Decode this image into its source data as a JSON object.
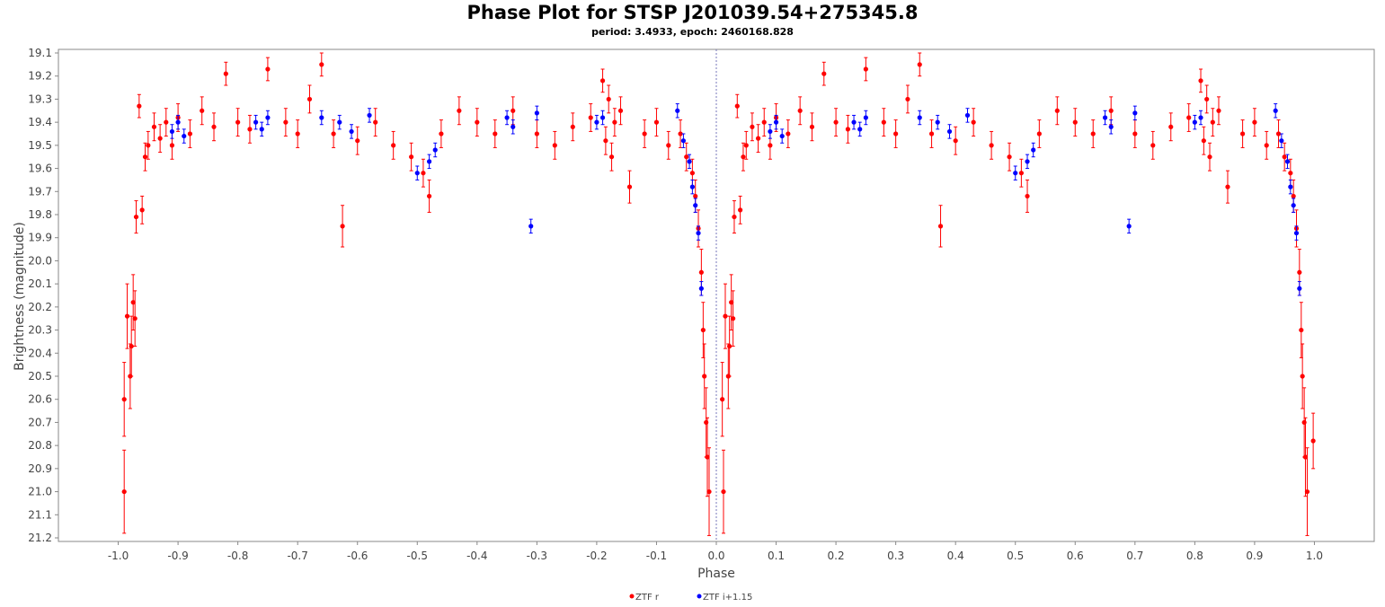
{
  "chart_data": {
    "type": "scatter",
    "title": "Phase Plot for STSP J201039.54+275345.8",
    "subtitle": "period: 3.4933, epoch: 2460168.828",
    "xlabel": "Phase",
    "ylabel": "Brightness (magnitude)",
    "xlim": [
      -1.1,
      1.1
    ],
    "ylim": [
      21.2,
      19.1
    ],
    "y_inverted": true,
    "xticks": [
      "-1.0",
      "-0.9",
      "-0.8",
      "-0.7",
      "-0.6",
      "-0.5",
      "-0.4",
      "-0.3",
      "-0.2",
      "-0.1",
      "0.0",
      "0.1",
      "0.2",
      "0.3",
      "0.4",
      "0.5",
      "0.6",
      "0.7",
      "0.8",
      "0.9",
      "1.0"
    ],
    "yticks": [
      "19.1",
      "19.2",
      "19.3",
      "19.4",
      "19.5",
      "19.6",
      "19.7",
      "19.8",
      "19.9",
      "20.0",
      "20.1",
      "20.2",
      "20.3",
      "20.4",
      "20.5",
      "20.6",
      "20.7",
      "20.8",
      "20.9",
      "21.0",
      "21.1",
      "21.2"
    ],
    "grid": false,
    "reference_line_x": 0.0,
    "legend_position": "bottom-center",
    "series": [
      {
        "name": "ZTF r",
        "color": "#ff0000",
        "points": [
          [
            -0.99,
            20.6,
            0.16
          ],
          [
            -0.99,
            21.0,
            0.18
          ],
          [
            -0.985,
            20.24,
            0.14
          ],
          [
            -0.98,
            20.5,
            0.14
          ],
          [
            -0.978,
            20.37,
            0.13
          ],
          [
            -0.975,
            20.18,
            0.12
          ],
          [
            -0.972,
            20.25,
            0.12
          ],
          [
            -0.97,
            19.81,
            0.07
          ],
          [
            -0.965,
            19.33,
            0.05
          ],
          [
            -0.96,
            19.78,
            0.06
          ],
          [
            -0.955,
            19.55,
            0.06
          ],
          [
            -0.95,
            19.5,
            0.06
          ],
          [
            -0.94,
            19.42,
            0.06
          ],
          [
            -0.93,
            19.47,
            0.06
          ],
          [
            -0.92,
            19.4,
            0.06
          ],
          [
            -0.91,
            19.5,
            0.06
          ],
          [
            -0.9,
            19.38,
            0.06
          ],
          [
            -0.88,
            19.45,
            0.06
          ],
          [
            -0.86,
            19.35,
            0.06
          ],
          [
            -0.84,
            19.42,
            0.06
          ],
          [
            -0.82,
            19.19,
            0.05
          ],
          [
            -0.8,
            19.4,
            0.06
          ],
          [
            -0.78,
            19.43,
            0.06
          ],
          [
            -0.75,
            19.17,
            0.05
          ],
          [
            -0.72,
            19.4,
            0.06
          ],
          [
            -0.7,
            19.45,
            0.06
          ],
          [
            -0.68,
            19.3,
            0.06
          ],
          [
            -0.66,
            19.15,
            0.05
          ],
          [
            -0.64,
            19.45,
            0.06
          ],
          [
            -0.625,
            19.85,
            0.09
          ],
          [
            -0.6,
            19.48,
            0.06
          ],
          [
            -0.57,
            19.4,
            0.06
          ],
          [
            -0.54,
            19.5,
            0.06
          ],
          [
            -0.51,
            19.55,
            0.06
          ],
          [
            -0.49,
            19.62,
            0.06
          ],
          [
            -0.48,
            19.72,
            0.07
          ],
          [
            -0.46,
            19.45,
            0.06
          ],
          [
            -0.43,
            19.35,
            0.06
          ],
          [
            -0.4,
            19.4,
            0.06
          ],
          [
            -0.37,
            19.45,
            0.06
          ],
          [
            -0.34,
            19.35,
            0.06
          ],
          [
            -0.3,
            19.45,
            0.06
          ],
          [
            -0.27,
            19.5,
            0.06
          ],
          [
            -0.24,
            19.42,
            0.06
          ],
          [
            -0.21,
            19.38,
            0.06
          ],
          [
            -0.19,
            19.22,
            0.05
          ],
          [
            -0.185,
            19.48,
            0.06
          ],
          [
            -0.18,
            19.3,
            0.06
          ],
          [
            -0.175,
            19.55,
            0.06
          ],
          [
            -0.17,
            19.4,
            0.06
          ],
          [
            -0.16,
            19.35,
            0.06
          ],
          [
            -0.145,
            19.68,
            0.07
          ],
          [
            -0.12,
            19.45,
            0.06
          ],
          [
            -0.1,
            19.4,
            0.06
          ],
          [
            -0.08,
            19.5,
            0.06
          ],
          [
            -0.06,
            19.45,
            0.06
          ],
          [
            -0.05,
            19.55,
            0.06
          ],
          [
            -0.04,
            19.62,
            0.06
          ],
          [
            -0.035,
            19.72,
            0.07
          ],
          [
            -0.03,
            19.86,
            0.08
          ],
          [
            -0.025,
            20.05,
            0.1
          ],
          [
            -0.022,
            20.3,
            0.12
          ],
          [
            -0.02,
            20.5,
            0.14
          ],
          [
            -0.017,
            20.7,
            0.15
          ],
          [
            -0.015,
            20.85,
            0.17
          ],
          [
            -0.012,
            21.0,
            0.19
          ],
          [
            0.01,
            20.6,
            0.16
          ],
          [
            0.012,
            21.0,
            0.18
          ],
          [
            0.015,
            20.24,
            0.14
          ],
          [
            0.02,
            20.5,
            0.14
          ],
          [
            0.022,
            20.37,
            0.13
          ],
          [
            0.025,
            20.18,
            0.12
          ],
          [
            0.028,
            20.25,
            0.12
          ],
          [
            0.03,
            19.81,
            0.07
          ],
          [
            0.035,
            19.33,
            0.05
          ],
          [
            0.04,
            19.78,
            0.06
          ],
          [
            0.045,
            19.55,
            0.06
          ],
          [
            0.05,
            19.5,
            0.06
          ],
          [
            0.06,
            19.42,
            0.06
          ],
          [
            0.07,
            19.47,
            0.06
          ],
          [
            0.08,
            19.4,
            0.06
          ],
          [
            0.09,
            19.5,
            0.06
          ],
          [
            0.1,
            19.38,
            0.06
          ],
          [
            0.12,
            19.45,
            0.06
          ],
          [
            0.14,
            19.35,
            0.06
          ],
          [
            0.16,
            19.42,
            0.06
          ],
          [
            0.18,
            19.19,
            0.05
          ],
          [
            0.2,
            19.4,
            0.06
          ],
          [
            0.22,
            19.43,
            0.06
          ],
          [
            0.25,
            19.17,
            0.05
          ],
          [
            0.28,
            19.4,
            0.06
          ],
          [
            0.3,
            19.45,
            0.06
          ],
          [
            0.32,
            19.3,
            0.06
          ],
          [
            0.34,
            19.15,
            0.05
          ],
          [
            0.36,
            19.45,
            0.06
          ],
          [
            0.375,
            19.85,
            0.09
          ],
          [
            0.4,
            19.48,
            0.06
          ],
          [
            0.43,
            19.4,
            0.06
          ],
          [
            0.46,
            19.5,
            0.06
          ],
          [
            0.49,
            19.55,
            0.06
          ],
          [
            0.51,
            19.62,
            0.06
          ],
          [
            0.52,
            19.72,
            0.07
          ],
          [
            0.54,
            19.45,
            0.06
          ],
          [
            0.57,
            19.35,
            0.06
          ],
          [
            0.6,
            19.4,
            0.06
          ],
          [
            0.63,
            19.45,
            0.06
          ],
          [
            0.66,
            19.35,
            0.06
          ],
          [
            0.7,
            19.45,
            0.06
          ],
          [
            0.73,
            19.5,
            0.06
          ],
          [
            0.76,
            19.42,
            0.06
          ],
          [
            0.79,
            19.38,
            0.06
          ],
          [
            0.81,
            19.22,
            0.05
          ],
          [
            0.815,
            19.48,
            0.06
          ],
          [
            0.82,
            19.3,
            0.06
          ],
          [
            0.825,
            19.55,
            0.06
          ],
          [
            0.83,
            19.4,
            0.06
          ],
          [
            0.84,
            19.35,
            0.06
          ],
          [
            0.855,
            19.68,
            0.07
          ],
          [
            0.88,
            19.45,
            0.06
          ],
          [
            0.9,
            19.4,
            0.06
          ],
          [
            0.92,
            19.5,
            0.06
          ],
          [
            0.94,
            19.45,
            0.06
          ],
          [
            0.95,
            19.55,
            0.06
          ],
          [
            0.96,
            19.62,
            0.06
          ],
          [
            0.965,
            19.72,
            0.07
          ],
          [
            0.97,
            19.86,
            0.08
          ],
          [
            0.975,
            20.05,
            0.1
          ],
          [
            0.978,
            20.3,
            0.12
          ],
          [
            0.98,
            20.5,
            0.14
          ],
          [
            0.983,
            20.7,
            0.15
          ],
          [
            0.985,
            20.85,
            0.17
          ],
          [
            0.988,
            21.0,
            0.19
          ],
          [
            0.998,
            20.78,
            0.12
          ]
        ]
      },
      {
        "name": "ZTF i+1.15",
        "color": "#0000ff",
        "points": [
          [
            -0.91,
            19.44,
            0.03
          ],
          [
            -0.9,
            19.4,
            0.03
          ],
          [
            -0.89,
            19.46,
            0.03
          ],
          [
            -0.77,
            19.4,
            0.03
          ],
          [
            -0.76,
            19.43,
            0.03
          ],
          [
            -0.75,
            19.38,
            0.03
          ],
          [
            -0.66,
            19.38,
            0.03
          ],
          [
            -0.63,
            19.4,
            0.03
          ],
          [
            -0.61,
            19.44,
            0.03
          ],
          [
            -0.58,
            19.37,
            0.03
          ],
          [
            -0.5,
            19.62,
            0.03
          ],
          [
            -0.48,
            19.57,
            0.03
          ],
          [
            -0.47,
            19.52,
            0.03
          ],
          [
            -0.35,
            19.38,
            0.03
          ],
          [
            -0.34,
            19.42,
            0.03
          ],
          [
            -0.31,
            19.85,
            0.03
          ],
          [
            -0.3,
            19.36,
            0.03
          ],
          [
            -0.2,
            19.4,
            0.03
          ],
          [
            -0.19,
            19.38,
            0.03
          ],
          [
            -0.065,
            19.35,
            0.03
          ],
          [
            -0.055,
            19.48,
            0.03
          ],
          [
            -0.045,
            19.57,
            0.03
          ],
          [
            -0.04,
            19.68,
            0.03
          ],
          [
            -0.035,
            19.76,
            0.03
          ],
          [
            -0.03,
            19.88,
            0.03
          ],
          [
            -0.025,
            20.12,
            0.03
          ],
          [
            0.09,
            19.44,
            0.03
          ],
          [
            0.1,
            19.4,
            0.03
          ],
          [
            0.11,
            19.46,
            0.03
          ],
          [
            0.23,
            19.4,
            0.03
          ],
          [
            0.24,
            19.43,
            0.03
          ],
          [
            0.25,
            19.38,
            0.03
          ],
          [
            0.34,
            19.38,
            0.03
          ],
          [
            0.37,
            19.4,
            0.03
          ],
          [
            0.39,
            19.44,
            0.03
          ],
          [
            0.42,
            19.37,
            0.03
          ],
          [
            0.5,
            19.62,
            0.03
          ],
          [
            0.52,
            19.57,
            0.03
          ],
          [
            0.53,
            19.52,
            0.03
          ],
          [
            0.65,
            19.38,
            0.03
          ],
          [
            0.66,
            19.42,
            0.03
          ],
          [
            0.69,
            19.85,
            0.03
          ],
          [
            0.7,
            19.36,
            0.03
          ],
          [
            0.8,
            19.4,
            0.03
          ],
          [
            0.81,
            19.38,
            0.03
          ],
          [
            0.935,
            19.35,
            0.03
          ],
          [
            0.945,
            19.48,
            0.03
          ],
          [
            0.955,
            19.57,
            0.03
          ],
          [
            0.96,
            19.68,
            0.03
          ],
          [
            0.965,
            19.76,
            0.03
          ],
          [
            0.97,
            19.88,
            0.03
          ],
          [
            0.975,
            20.12,
            0.03
          ]
        ]
      }
    ],
    "legend": [
      {
        "label": "ZTF r",
        "color": "#ff0000"
      },
      {
        "label": "ZTF i+1.15",
        "color": "#0000ff"
      }
    ]
  }
}
